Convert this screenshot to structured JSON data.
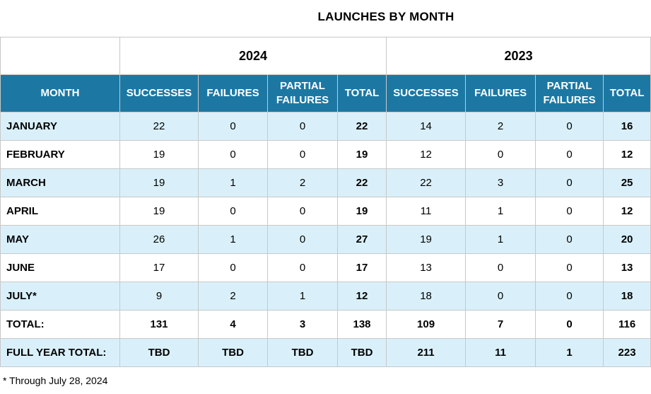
{
  "title": "LAUNCHES BY MONTH",
  "years": [
    "2024",
    "2023"
  ],
  "headers": {
    "month": "MONTH",
    "successes": "SUCCESSES",
    "failures": "FAILURES",
    "partial_line1": "PARTIAL",
    "partial_line2": "FAILURES",
    "total": "TOTAL"
  },
  "rows": [
    {
      "month": "JANUARY",
      "y2024": [
        "22",
        "0",
        "0",
        "22"
      ],
      "y2023": [
        "14",
        "2",
        "0",
        "16"
      ]
    },
    {
      "month": "FEBRUARY",
      "y2024": [
        "19",
        "0",
        "0",
        "19"
      ],
      "y2023": [
        "12",
        "0",
        "0",
        "12"
      ]
    },
    {
      "month": "MARCH",
      "y2024": [
        "19",
        "1",
        "2",
        "22"
      ],
      "y2023": [
        "22",
        "3",
        "0",
        "25"
      ]
    },
    {
      "month": "APRIL",
      "y2024": [
        "19",
        "0",
        "0",
        "19"
      ],
      "y2023": [
        "11",
        "1",
        "0",
        "12"
      ]
    },
    {
      "month": "MAY",
      "y2024": [
        "26",
        "1",
        "0",
        "27"
      ],
      "y2023": [
        "19",
        "1",
        "0",
        "20"
      ]
    },
    {
      "month": "JUNE",
      "y2024": [
        "17",
        "0",
        "0",
        "17"
      ],
      "y2023": [
        "13",
        "0",
        "0",
        "13"
      ]
    },
    {
      "month": "JULY*",
      "y2024": [
        "9",
        "2",
        "1",
        "12"
      ],
      "y2023": [
        "18",
        "0",
        "0",
        "18"
      ]
    }
  ],
  "total_row": {
    "label": "TOTAL:",
    "y2024": [
      "131",
      "4",
      "3",
      "138"
    ],
    "y2023": [
      "109",
      "7",
      "0",
      "116"
    ]
  },
  "full_year_row": {
    "label": "FULL YEAR TOTAL:",
    "y2024": [
      "TBD",
      "TBD",
      "TBD",
      "TBD"
    ],
    "y2023": [
      "211",
      "11",
      "1",
      "223"
    ]
  },
  "footnote": "* Through July 28, 2024"
}
